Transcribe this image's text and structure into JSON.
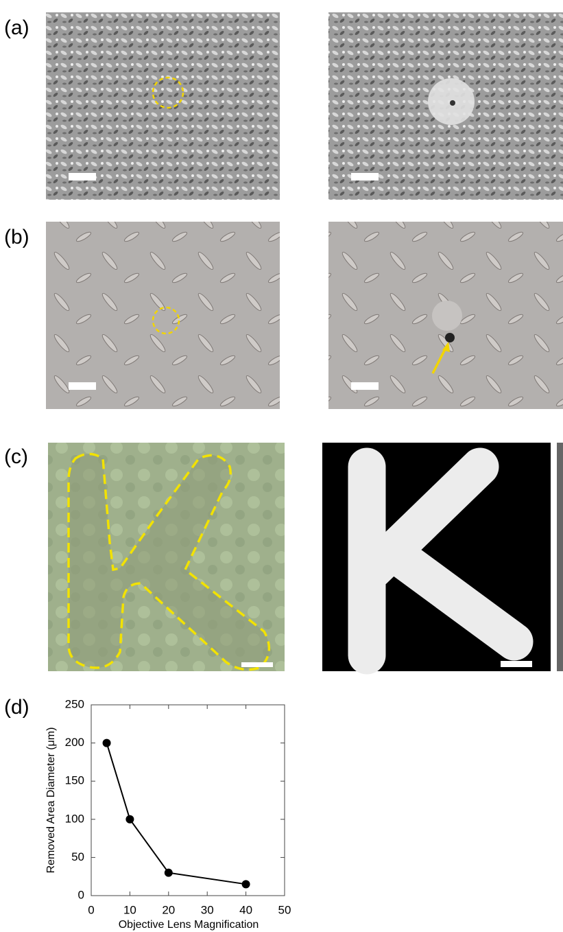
{
  "panel_labels": [
    "(a)",
    "(b)",
    "(c)",
    "(d)"
  ],
  "chart_data": {
    "type": "line",
    "x": [
      4,
      10,
      20,
      40
    ],
    "values": [
      200,
      100,
      30,
      15
    ],
    "color": "#000000",
    "xlabel": "Objective Lens Magnification",
    "ylabel": "Removed Area Diameter (μm)",
    "xlim": [
      0,
      50
    ],
    "ylim": [
      0,
      250
    ],
    "xticks": [
      0,
      10,
      20,
      30,
      40,
      50
    ],
    "yticks": [
      0,
      50,
      100,
      150,
      200,
      250
    ]
  }
}
